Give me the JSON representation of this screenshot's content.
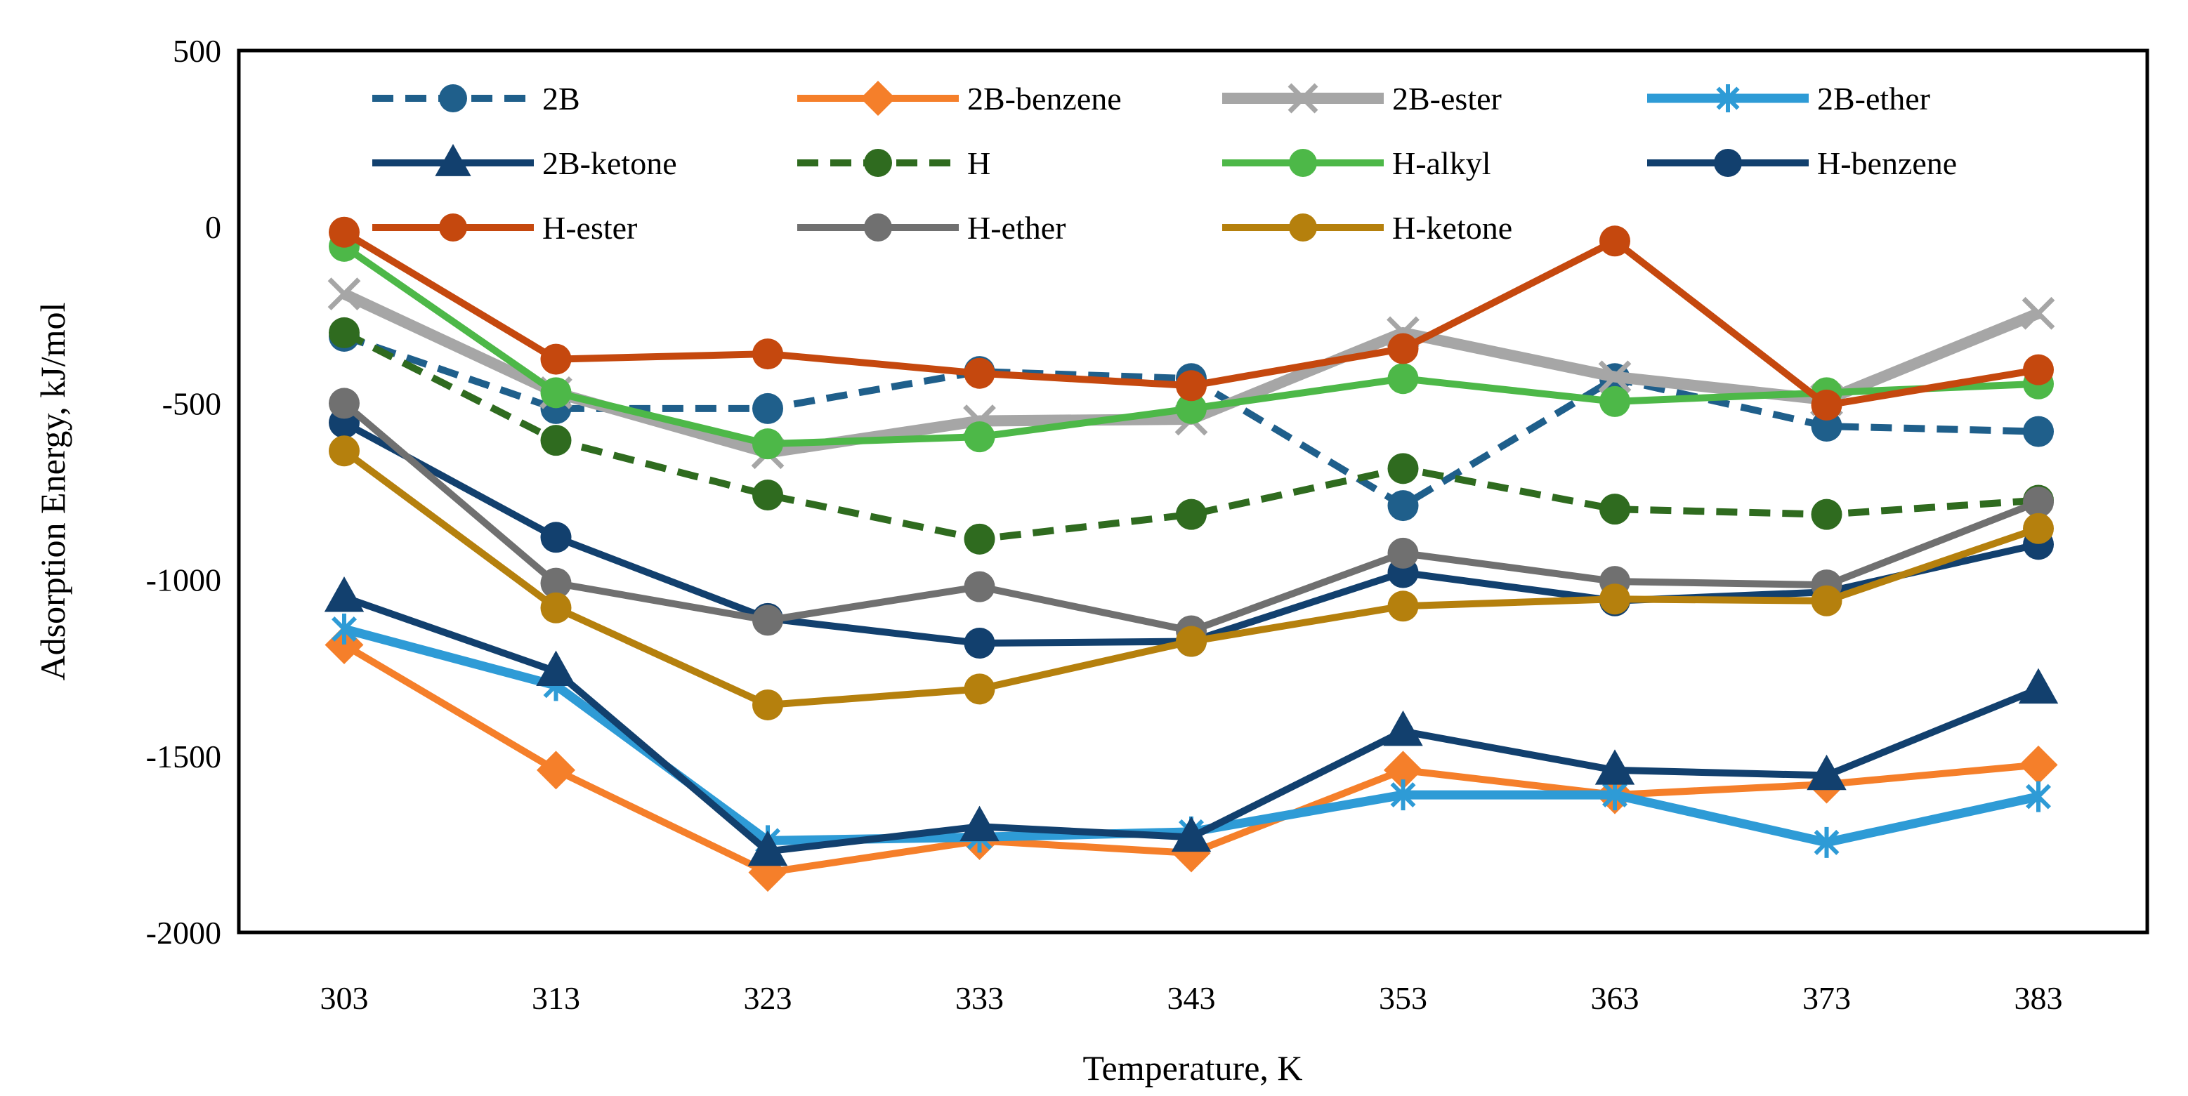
{
  "chart_data": {
    "type": "line",
    "title": "",
    "xlabel": "Temperature, K",
    "ylabel": "Adsorption Energy,  kJ/mol",
    "categories": [
      "303",
      "313",
      "323",
      "333",
      "343",
      "353",
      "363",
      "373",
      "383"
    ],
    "y_ticks": [
      "500",
      "0",
      "-500",
      "-1000",
      "-1500",
      "-2000"
    ],
    "ylim": [
      -2000,
      500
    ],
    "grid": false,
    "legend_position": "top",
    "series": [
      {
        "name": "2B",
        "color": "#1f5f8b",
        "dash": "dashed",
        "marker": "circle",
        "values": [
          -310,
          -515,
          -515,
          -410,
          -430,
          -790,
          -430,
          -565,
          -580
        ]
      },
      {
        "name": "2B-benzene",
        "color": "#f57f2a",
        "dash": "solid",
        "marker": "diamond",
        "values": [
          -1185,
          -1540,
          -1830,
          -1740,
          -1775,
          -1540,
          -1610,
          -1580,
          -1525
        ]
      },
      {
        "name": "2B-ester",
        "color": "#a6a6a6",
        "dash": "solid",
        "marker": "x",
        "values": [
          -190,
          -470,
          -640,
          -550,
          -545,
          -300,
          -425,
          -490,
          -245
        ]
      },
      {
        "name": "2B-ether",
        "color": "#2e9bd6",
        "dash": "solid",
        "marker": "star",
        "values": [
          -1140,
          -1300,
          -1740,
          -1730,
          -1715,
          -1610,
          -1610,
          -1745,
          -1615
        ]
      },
      {
        "name": "2B-ketone",
        "color": "#12406e",
        "dash": "solid",
        "marker": "triangle",
        "values": [
          -1050,
          -1260,
          -1770,
          -1700,
          -1730,
          -1430,
          -1540,
          -1555,
          -1310
        ]
      },
      {
        "name": "H",
        "color": "#2f6b1f",
        "dash": "dashed",
        "marker": "circle",
        "values": [
          -300,
          -605,
          -760,
          -885,
          -815,
          -685,
          -800,
          -815,
          -775
        ]
      },
      {
        "name": "H-alkyl",
        "color": "#4db848",
        "dash": "solid",
        "marker": "circle",
        "values": [
          -55,
          -470,
          -615,
          -595,
          -515,
          -430,
          -495,
          -470,
          -445
        ]
      },
      {
        "name": "H-benzene",
        "color": "#12406e",
        "dash": "solid",
        "marker": "circle",
        "values": [
          -555,
          -880,
          -1110,
          -1180,
          -1175,
          -980,
          -1060,
          -1035,
          -900
        ]
      },
      {
        "name": "H-ester",
        "color": "#c5480e",
        "dash": "solid",
        "marker": "circle",
        "values": [
          -15,
          -375,
          -360,
          -415,
          -450,
          -345,
          -40,
          -505,
          -405
        ]
      },
      {
        "name": "H-ether",
        "color": "#707070",
        "dash": "solid",
        "marker": "circle",
        "values": [
          -500,
          -1010,
          -1115,
          -1020,
          -1145,
          -925,
          -1005,
          -1015,
          -780
        ]
      },
      {
        "name": "H-ketone",
        "color": "#b5800d",
        "dash": "solid",
        "marker": "circle",
        "values": [
          -635,
          -1080,
          -1355,
          -1310,
          -1175,
          -1075,
          -1055,
          -1060,
          -855
        ]
      }
    ]
  }
}
